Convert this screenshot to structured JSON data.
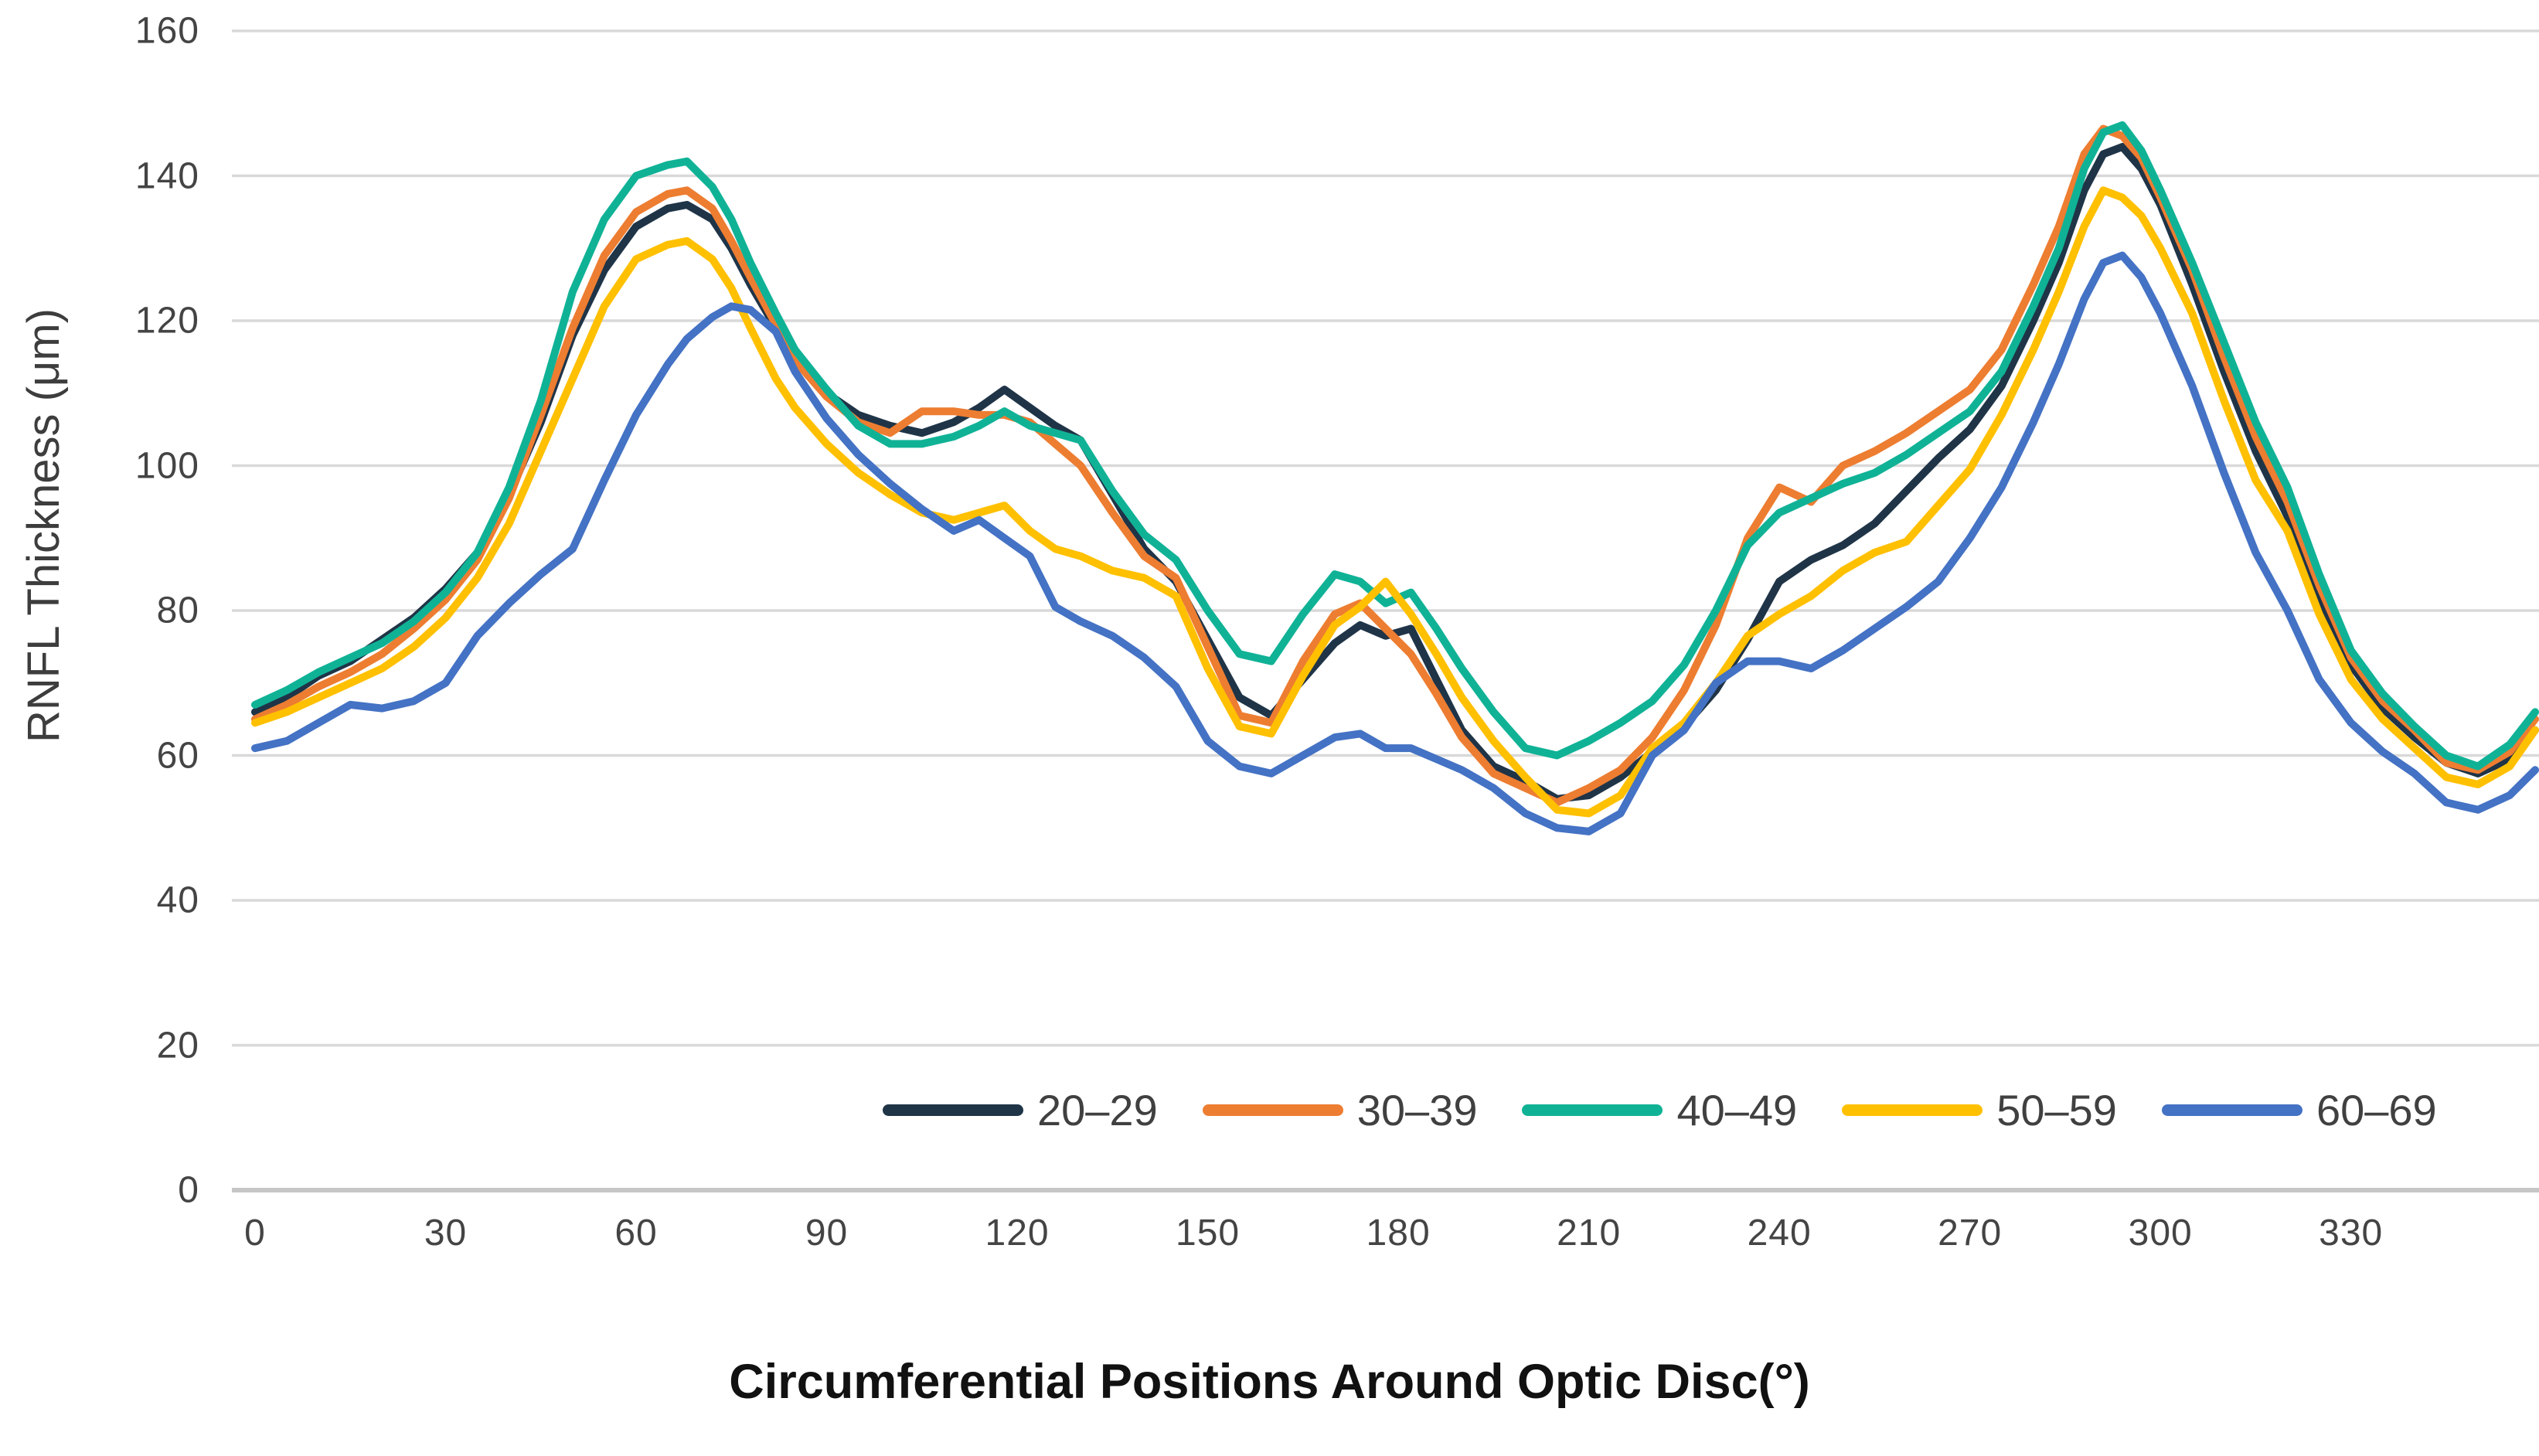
{
  "figure": {
    "x_axis_title": "Circumferential Positions Around Optic Disc(°)",
    "y_axis_title": "RNFL Thickness (μm)"
  },
  "colors": {
    "grid": "#d9d9d9",
    "axis_line": "#c6c6c6",
    "tick_text": "#444444",
    "navy": "#1f3447",
    "orange": "#ed7d31",
    "teal": "#10b296",
    "yellow": "#ffc000",
    "blue": "#4472c4"
  },
  "legend": {
    "items": [
      {
        "label": "20–29",
        "color": "#1f3447"
      },
      {
        "label": "30–39",
        "color": "#ed7d31"
      },
      {
        "label": "40–49",
        "color": "#10b296"
      },
      {
        "label": "50–59",
        "color": "#ffc000"
      },
      {
        "label": "60–69",
        "color": "#4472c4"
      }
    ]
  },
  "chart_data": {
    "type": "line",
    "title": "",
    "xlabel": "Circumferential Positions Around Optic Disc(°)",
    "ylabel": "RNFL Thickness (μm)",
    "xlim": [
      0,
      359
    ],
    "ylim": [
      0,
      160
    ],
    "y_ticks": [
      0,
      20,
      40,
      60,
      80,
      100,
      120,
      140,
      160
    ],
    "x_ticks": [
      0,
      30,
      60,
      90,
      120,
      150,
      180,
      210,
      240,
      270,
      300,
      330
    ],
    "grid": "horizontal",
    "legend_position": "bottom-inside",
    "x": [
      0,
      5,
      10,
      15,
      20,
      25,
      30,
      35,
      40,
      45,
      50,
      55,
      60,
      65,
      68,
      72,
      75,
      78,
      82,
      85,
      90,
      95,
      100,
      105,
      110,
      114,
      118,
      122,
      126,
      130,
      135,
      140,
      145,
      150,
      155,
      160,
      165,
      170,
      174,
      178,
      182,
      186,
      190,
      195,
      200,
      205,
      210,
      215,
      220,
      225,
      230,
      235,
      240,
      245,
      250,
      255,
      260,
      265,
      270,
      275,
      280,
      284,
      288,
      291,
      294,
      297,
      300,
      305,
      310,
      315,
      320,
      325,
      330,
      335,
      340,
      345,
      350,
      355,
      359
    ],
    "series": [
      {
        "name": "20–29",
        "color": "#1f3447",
        "values": [
          66,
          68,
          71,
          73,
          76,
          79,
          83,
          88,
          96,
          106,
          118,
          127,
          133,
          135.5,
          136,
          134,
          130,
          125,
          119,
          114.5,
          110,
          107,
          105.5,
          104.5,
          106,
          108,
          110.5,
          108,
          105.5,
          103.5,
          96,
          88.5,
          84,
          76,
          68,
          65.5,
          70.5,
          75.5,
          78,
          76.5,
          77.5,
          70.5,
          63.5,
          58.5,
          56.5,
          54,
          54.5,
          57,
          60.5,
          64,
          69,
          76,
          84,
          87,
          89,
          92,
          96.5,
          101,
          105,
          111,
          120,
          128,
          138,
          143,
          144,
          141,
          136,
          125,
          113,
          102,
          93,
          82,
          72.5,
          66.5,
          62.5,
          59,
          57.5,
          59.5,
          63.5
        ]
      },
      {
        "name": "30–39",
        "color": "#ed7d31",
        "values": [
          65,
          67,
          69.5,
          71.5,
          74,
          77.5,
          81.5,
          87,
          95.5,
          107,
          119,
          129,
          135,
          137.5,
          138,
          135.5,
          131,
          126,
          119.5,
          114.5,
          109.5,
          106,
          104.5,
          107.5,
          107.5,
          107,
          107,
          106,
          103,
          100,
          93.5,
          87.5,
          84.5,
          75,
          65.5,
          64.5,
          73,
          79.5,
          81,
          77.5,
          74,
          68.5,
          62.5,
          57.5,
          55.5,
          53.5,
          55.5,
          58,
          62.5,
          69,
          78,
          90,
          97,
          95,
          100,
          102,
          104.5,
          107.5,
          110.5,
          116,
          125,
          133,
          143,
          146.5,
          145.5,
          142.5,
          137,
          127,
          115,
          104,
          95,
          83.5,
          73.5,
          67.5,
          63.5,
          59,
          58,
          60.5,
          65
        ]
      },
      {
        "name": "40–49",
        "color": "#10b296",
        "values": [
          67,
          69,
          71.5,
          73.5,
          75.5,
          78.5,
          82.5,
          88,
          97,
          109,
          124,
          134,
          140,
          141.5,
          142,
          138.5,
          134,
          128,
          121,
          116,
          110.5,
          105.5,
          103,
          103,
          104,
          105.5,
          107.5,
          105.5,
          104.5,
          103.5,
          96.5,
          90.5,
          87,
          80,
          74,
          73,
          79.5,
          85,
          84,
          81,
          82.5,
          77.5,
          72,
          66,
          61,
          60,
          62,
          64.5,
          67.5,
          72.5,
          80,
          89,
          93.5,
          95.5,
          97.5,
          99,
          101.5,
          104.5,
          107.5,
          113,
          122,
          130,
          141,
          146,
          147,
          143.5,
          138,
          128,
          117,
          106,
          97,
          85,
          74.5,
          68.5,
          64,
          60,
          58.5,
          61.5,
          66
        ]
      },
      {
        "name": "50–59",
        "color": "#ffc000",
        "values": [
          64.5,
          66,
          68,
          70,
          72,
          75,
          79,
          84.5,
          92,
          102,
          112,
          122,
          128.5,
          130.5,
          131,
          128.5,
          124.5,
          119,
          112,
          108,
          103,
          99,
          96,
          93.5,
          92.5,
          93.5,
          94.5,
          91,
          88.5,
          87.5,
          85.5,
          84.5,
          82,
          72,
          64,
          63,
          71,
          78,
          80.5,
          84,
          79.5,
          74,
          68,
          62,
          57,
          52.5,
          52,
          54.5,
          61,
          64.5,
          70,
          76.5,
          79.5,
          82,
          85.5,
          88,
          89.5,
          94.5,
          99.5,
          107,
          116,
          124,
          133,
          138,
          137,
          134.5,
          130,
          121,
          109,
          98,
          91,
          79.5,
          70.5,
          65,
          61,
          57,
          56,
          58.5,
          63.5
        ]
      },
      {
        "name": "60–69",
        "color": "#4472c4",
        "values": [
          61,
          62,
          64.5,
          67,
          66.5,
          67.5,
          70,
          76.5,
          81,
          85,
          88.5,
          98,
          107,
          114,
          117.5,
          120.5,
          122,
          121.5,
          118.5,
          113,
          106.5,
          101.5,
          97.5,
          94,
          91,
          92.5,
          90,
          87.5,
          80.5,
          78.5,
          76.5,
          73.5,
          69.5,
          62,
          58.5,
          57.5,
          60,
          62.5,
          63,
          61,
          61,
          59.5,
          58,
          55.5,
          52,
          50,
          49.5,
          52,
          60,
          63.5,
          70,
          73,
          73,
          72,
          74.5,
          77.5,
          80.5,
          84,
          90,
          97,
          106,
          114,
          123,
          128,
          129,
          126,
          121,
          111,
          99,
          88,
          80,
          70.5,
          64.5,
          60.5,
          57.5,
          53.5,
          52.5,
          54.5,
          58
        ]
      }
    ]
  }
}
